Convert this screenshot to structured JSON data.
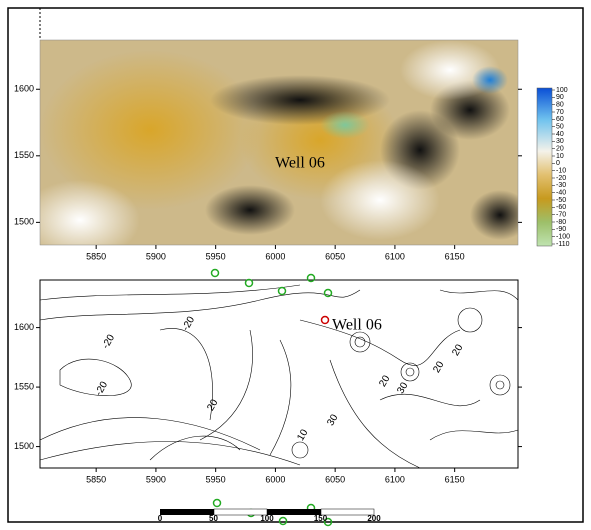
{
  "top_map": {
    "xlim": [
      5803,
      6203
    ],
    "ylim": [
      1483,
      1637
    ],
    "xticks": [
      5850,
      5900,
      5950,
      6000,
      6050,
      6100,
      6150
    ],
    "yticks": [
      1500,
      1550,
      1600
    ],
    "annotation": "Well 06"
  },
  "colorbar": {
    "ticks": [
      100,
      90,
      80,
      70,
      60,
      50,
      40,
      30,
      20,
      10,
      0,
      -10,
      -20,
      -30,
      -40,
      -50,
      -60,
      -70,
      -80,
      -90,
      -100,
      -110
    ]
  },
  "contour_map": {
    "xlim": [
      5803,
      6203
    ],
    "ylim": [
      1482,
      1640
    ],
    "xticks": [
      5850,
      5900,
      5950,
      6000,
      6050,
      6100,
      6150
    ],
    "yticks": [
      1500,
      1550,
      1600
    ],
    "annotation": "Well 06",
    "contour_labels": [
      "-20",
      "-20",
      "-20",
      "20",
      "20",
      "30",
      "30",
      "20",
      "20",
      "10"
    ]
  },
  "scale_bar": {
    "ticks": [
      0,
      50,
      100,
      150,
      200
    ]
  }
}
